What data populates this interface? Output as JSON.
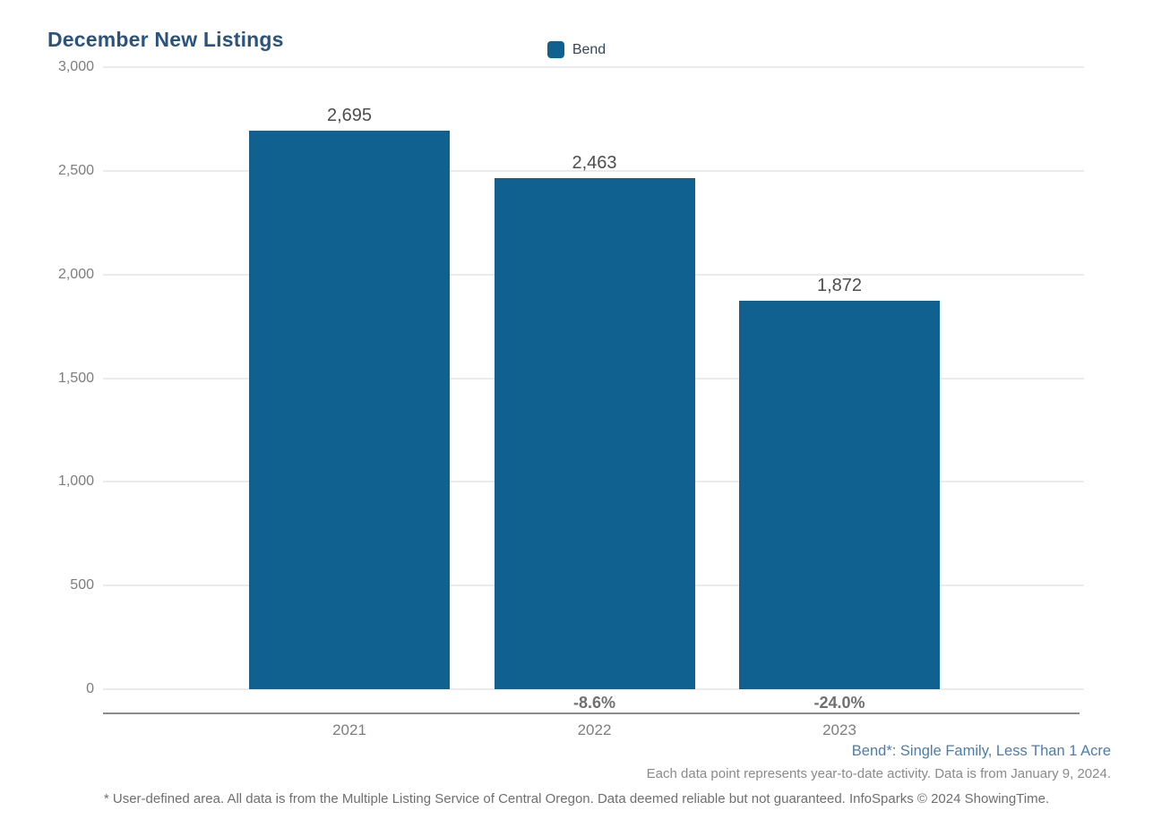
{
  "title": "December New Listings",
  "legend": {
    "label": "Bend"
  },
  "chart_data": {
    "type": "bar",
    "title": "December New Listings",
    "series_name": "Bend",
    "categories": [
      "2021",
      "2022",
      "2023"
    ],
    "values": [
      2695,
      2463,
      1872
    ],
    "value_labels": [
      "2,695",
      "2,463",
      "1,872"
    ],
    "pct_change_labels": [
      "",
      "-8.6%",
      "-24.0%"
    ],
    "ylim": [
      0,
      3000
    ],
    "yticks": [
      0,
      500,
      1000,
      1500,
      2000,
      2500,
      3000
    ],
    "ytick_labels": [
      "0",
      "500",
      "1,000",
      "1,500",
      "2,000",
      "2,500",
      "3,000"
    ],
    "grid": true,
    "legend_position": "top-center",
    "bar_color": "#10618F"
  },
  "footnotes": {
    "series_definition": "Bend*: Single Family, Less Than 1 Acre",
    "data_note": "Each data point represents year-to-date activity. Data is from January 9, 2024.",
    "disclaimer": "* User-defined area. All data is from the Multiple Listing Service of Central Oregon. Data deemed reliable but not guaranteed. InfoSparks © 2024 ShowingTime."
  },
  "colors": {
    "bar": "#10618F",
    "title_text": "#2A5480",
    "footnote_link": "#4A7DB0",
    "axis_text": "#7D7D7D",
    "value_label_text": "#4D4D4D",
    "pct_label_text": "#707070",
    "gridline": "#EBEBEB",
    "axis_line": "#8C8C8C"
  }
}
